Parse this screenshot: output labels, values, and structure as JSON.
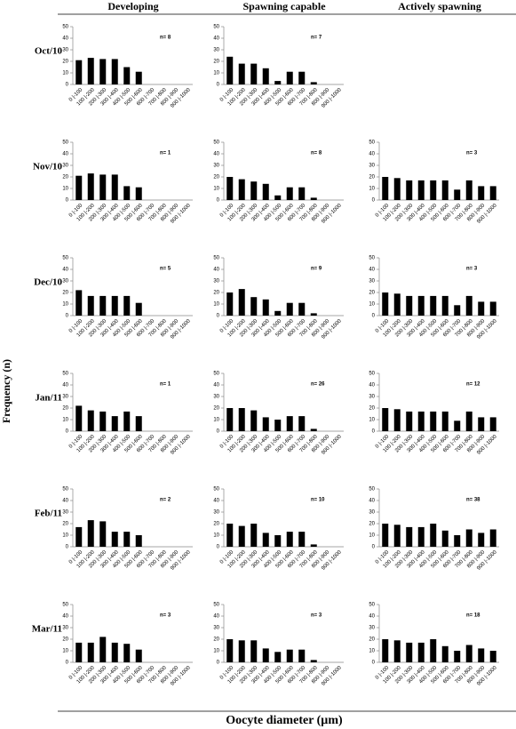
{
  "column_headers": [
    "Developing",
    "Spawning capable",
    "Actively spawning"
  ],
  "row_labels": [
    "Oct/10",
    "Nov/10",
    "Dec/10",
    "Jan/11",
    "Feb/11",
    "Mar/11"
  ],
  "y_axis_label": "Frequency (n)",
  "x_axis_label": "Oocyte diameter (µm)",
  "chart_data": [
    {
      "type": "bar",
      "note": "n= 8",
      "color": "#000000",
      "ylim": [
        0,
        50
      ],
      "yticks": [
        0,
        10,
        20,
        30,
        40,
        50
      ],
      "categories": [
        "0 |-100",
        "100 |-200",
        "200 |-300",
        "300 |-400",
        "400 |-500",
        "500 |-600",
        "600 |-700",
        "700 |-800",
        "800 |-900",
        "900 |-1000"
      ],
      "values": [
        21,
        23,
        22,
        22,
        15,
        11,
        0,
        0,
        0,
        0
      ]
    },
    {
      "type": "bar",
      "note": "n= 7",
      "color": "#000000",
      "ylim": [
        0,
        50
      ],
      "yticks": [
        0,
        10,
        20,
        30,
        40,
        50
      ],
      "categories": [
        "0 |-100",
        "100 |-200",
        "200 |-300",
        "300 |-400",
        "400 |-500",
        "500 |-600",
        "600 |-700",
        "700 |-800",
        "800 |-900",
        "900 |-1000"
      ],
      "values": [
        24,
        18,
        18,
        14,
        3,
        11,
        11,
        2,
        0,
        0
      ]
    },
    {
      "type": "bar",
      "note": "n= 1",
      "color": "#000000",
      "ylim": [
        0,
        50
      ],
      "yticks": [
        0,
        10,
        20,
        30,
        40,
        50
      ],
      "categories": [
        "0 |-100",
        "100 |-200",
        "200 |-300",
        "300 |-400",
        "400 |-500",
        "500 |-600",
        "600 |-700",
        "700 |-800",
        "800 |-900",
        "900 |-1000"
      ],
      "values": [
        21,
        23,
        22,
        22,
        12,
        11,
        0,
        0,
        0,
        0
      ]
    },
    {
      "type": "bar",
      "note": "n= 8",
      "color": "#000000",
      "ylim": [
        0,
        50
      ],
      "yticks": [
        0,
        10,
        20,
        30,
        40,
        50
      ],
      "categories": [
        "0 |-100",
        "100 |-200",
        "200 |-300",
        "300 |-400",
        "400 |-500",
        "500 |-600",
        "600 |-700",
        "700 |-800",
        "800 |-900",
        "900 |-1000"
      ],
      "values": [
        20,
        18,
        16,
        14,
        4,
        11,
        11,
        2,
        0,
        0
      ]
    },
    {
      "type": "bar",
      "note": "n= 3",
      "color": "#000000",
      "ylim": [
        0,
        50
      ],
      "yticks": [
        0,
        10,
        20,
        30,
        40,
        50
      ],
      "categories": [
        "0 |-100",
        "100 |-200",
        "200 |-300",
        "300 |-400",
        "400 |-500",
        "500 |-600",
        "600 |-700",
        "700 |-800",
        "800 |-900",
        "900 |-1000"
      ],
      "values": [
        20,
        19,
        17,
        17,
        17,
        17,
        9,
        17,
        12,
        12
      ]
    },
    {
      "type": "bar",
      "note": "n= 5",
      "color": "#000000",
      "ylim": [
        0,
        50
      ],
      "yticks": [
        0,
        10,
        20,
        30,
        40,
        50
      ],
      "categories": [
        "0 |-100",
        "100 |-200",
        "200 |-300",
        "300 |-400",
        "400 |-500",
        "500 |-600",
        "600 |-700",
        "700 |-800",
        "800 |-900",
        "900 |-1000"
      ],
      "values": [
        22,
        17,
        17,
        17,
        17,
        11,
        0,
        0,
        0,
        0
      ]
    },
    {
      "type": "bar",
      "note": "n= 9",
      "color": "#000000",
      "ylim": [
        0,
        50
      ],
      "yticks": [
        0,
        10,
        20,
        30,
        40,
        50
      ],
      "categories": [
        "0 |-100",
        "100 |-200",
        "200 |-300",
        "300 |-400",
        "400 |-500",
        "500 |-600",
        "600 |-700",
        "700 |-800",
        "800 |-900",
        "900 |-1000"
      ],
      "values": [
        20,
        23,
        16,
        14,
        4,
        11,
        11,
        2,
        0,
        0
      ]
    },
    {
      "type": "bar",
      "note": "n= 3",
      "color": "#000000",
      "ylim": [
        0,
        50
      ],
      "yticks": [
        0,
        10,
        20,
        30,
        40,
        50
      ],
      "categories": [
        "0 |-100",
        "100 |-200",
        "200 |-300",
        "300 |-400",
        "400 |-500",
        "500 |-600",
        "600 |-700",
        "700 |-800",
        "800 |-900",
        "900 |-1000"
      ],
      "values": [
        20,
        19,
        17,
        17,
        17,
        17,
        9,
        17,
        12,
        12
      ]
    },
    {
      "type": "bar",
      "note": "n= 1",
      "color": "#000000",
      "ylim": [
        0,
        50
      ],
      "yticks": [
        0,
        10,
        20,
        30,
        40,
        50
      ],
      "categories": [
        "0 |-100",
        "100 |-200",
        "200 |-300",
        "300 |-400",
        "400 |-500",
        "500 |-600",
        "600 |-700",
        "700 |-800",
        "800 |-900",
        "900 |-1000"
      ],
      "values": [
        22,
        18,
        17,
        13,
        17,
        13,
        0,
        0,
        0,
        0
      ]
    },
    {
      "type": "bar",
      "note": "n= 26",
      "color": "#000000",
      "ylim": [
        0,
        50
      ],
      "yticks": [
        0,
        10,
        20,
        30,
        40,
        50
      ],
      "categories": [
        "0 |-100",
        "100 |-200",
        "200 |-300",
        "300 |-400",
        "400 |-500",
        "500 |-600",
        "600 |-700",
        "700 |-800",
        "800 |-900",
        "900 |-1000"
      ],
      "values": [
        20,
        20,
        18,
        12,
        10,
        13,
        13,
        2,
        0,
        0
      ]
    },
    {
      "type": "bar",
      "note": "n= 12",
      "color": "#000000",
      "ylim": [
        0,
        50
      ],
      "yticks": [
        0,
        10,
        20,
        30,
        40,
        50
      ],
      "categories": [
        "0 |-100",
        "100 |-200",
        "200 |-300",
        "300 |-400",
        "400 |-500",
        "500 |-600",
        "600 |-700",
        "700 |-800",
        "800 |-900",
        "900 |-1000"
      ],
      "values": [
        20,
        19,
        17,
        17,
        17,
        17,
        9,
        17,
        12,
        12
      ]
    },
    {
      "type": "bar",
      "note": "n= 2",
      "color": "#000000",
      "ylim": [
        0,
        50
      ],
      "yticks": [
        0,
        10,
        20,
        30,
        40,
        50
      ],
      "categories": [
        "0 |-100",
        "100 |-200",
        "200 |-300",
        "300 |-400",
        "400 |-500",
        "500 |-600",
        "600 |-700",
        "700 |-800",
        "800 |-900",
        "900 |-1000"
      ],
      "values": [
        17,
        23,
        22,
        13,
        13,
        10,
        0,
        0,
        0,
        0
      ]
    },
    {
      "type": "bar",
      "note": "n= 10",
      "color": "#000000",
      "ylim": [
        0,
        50
      ],
      "yticks": [
        0,
        10,
        20,
        30,
        40,
        50
      ],
      "categories": [
        "0 |-100",
        "100 |-200",
        "200 |-300",
        "300 |-400",
        "400 |-500",
        "500 |-600",
        "600 |-700",
        "700 |-800",
        "800 |-900",
        "900 |-1000"
      ],
      "values": [
        20,
        18,
        20,
        12,
        10,
        13,
        13,
        2,
        0,
        0
      ]
    },
    {
      "type": "bar",
      "note": "n= 38",
      "color": "#000000",
      "ylim": [
        0,
        50
      ],
      "yticks": [
        0,
        10,
        20,
        30,
        40,
        50
      ],
      "categories": [
        "0 |-100",
        "100 |-200",
        "200 |-300",
        "300 |-400",
        "400 |-500",
        "500 |-600",
        "600 |-700",
        "700 |-800",
        "800 |-900",
        "900 |-1000"
      ],
      "values": [
        20,
        19,
        17,
        17,
        20,
        14,
        10,
        15,
        12,
        15
      ]
    },
    {
      "type": "bar",
      "note": "n= 3",
      "color": "#000000",
      "ylim": [
        0,
        50
      ],
      "yticks": [
        0,
        10,
        20,
        30,
        40,
        50
      ],
      "categories": [
        "0 |-100",
        "100 |-200",
        "200 |-300",
        "300 |-400",
        "400 |-500",
        "500 |-600",
        "600 |-700",
        "700 |-800",
        "800 |-900",
        "900 |-1000"
      ],
      "values": [
        17,
        17,
        22,
        17,
        16,
        11,
        0,
        0,
        0,
        0
      ]
    },
    {
      "type": "bar",
      "note": "n= 3",
      "color": "#000000",
      "ylim": [
        0,
        50
      ],
      "yticks": [
        0,
        10,
        20,
        30,
        40,
        50
      ],
      "categories": [
        "0 |-100",
        "100 |-200",
        "200 |-300",
        "300 |-400",
        "400 |-500",
        "500 |-600",
        "600 |-700",
        "700 |-800",
        "800 |-900",
        "900 |-1000"
      ],
      "values": [
        20,
        19,
        19,
        12,
        9,
        11,
        11,
        2,
        0,
        0
      ]
    },
    {
      "type": "bar",
      "note": "n= 18",
      "color": "#000000",
      "ylim": [
        0,
        50
      ],
      "yticks": [
        0,
        10,
        20,
        30,
        40,
        50
      ],
      "categories": [
        "0 |-100",
        "100 |-200",
        "200 |-300",
        "300 |-400",
        "400 |-500",
        "500 |-600",
        "600 |-700",
        "700 |-800",
        "800 |-900",
        "900 |-1000"
      ],
      "values": [
        20,
        19,
        17,
        17,
        20,
        14,
        10,
        15,
        12,
        10
      ]
    }
  ]
}
